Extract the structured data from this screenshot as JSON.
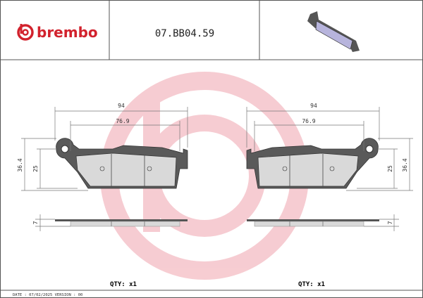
{
  "header": {
    "brand": "brembo",
    "part_number": "07.BB04.59"
  },
  "left_view": {
    "width_overall": 94,
    "width_inner": 76.9,
    "height_overall": 36.4,
    "height_pad": 25,
    "thickness": 7,
    "qty": "QTY: x1"
  },
  "right_view": {
    "width_overall": 94,
    "width_inner": 76.9,
    "height_overall": 36.4,
    "height_pad": 25,
    "thickness": 7,
    "qty": "QTY: x1"
  },
  "footer": {
    "text": "DATE : 07/02/2025 VERSION : 00"
  }
}
